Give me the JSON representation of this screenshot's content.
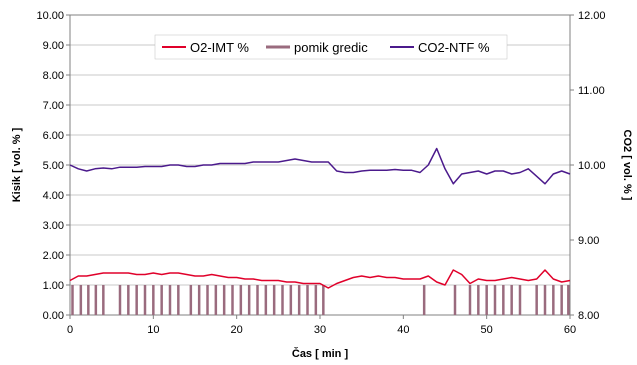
{
  "chart_data": {
    "type": "line",
    "xlabel": "Čas [ min ]",
    "ylabel_left": "Kisik [ vol. % ]",
    "ylabel_right": "CO2 [ vol. % ]",
    "x_ticks": [
      "0",
      "10",
      "20",
      "30",
      "40",
      "50",
      "60"
    ],
    "y_left_ticks": [
      "0.00",
      "1.00",
      "2.00",
      "3.00",
      "4.00",
      "5.00",
      "6.00",
      "7.00",
      "8.00",
      "9.00",
      "10.00"
    ],
    "y_right_ticks": [
      "8.00",
      "9.00",
      "10.00",
      "11.00",
      "12.00"
    ],
    "xlim": [
      0,
      60
    ],
    "ylim_left": [
      0,
      10
    ],
    "ylim_right": [
      8,
      12
    ],
    "grid": "horizontal",
    "legend_position": "top",
    "series": [
      {
        "name": "O2-IMT %",
        "axis": "left",
        "color": "#e0002a",
        "x": [
          0,
          1,
          2,
          3,
          4,
          5,
          6,
          7,
          8,
          9,
          10,
          11,
          12,
          13,
          14,
          15,
          16,
          17,
          18,
          19,
          20,
          21,
          22,
          23,
          24,
          25,
          26,
          27,
          28,
          29,
          30,
          31,
          32,
          33,
          34,
          35,
          36,
          37,
          38,
          39,
          40,
          41,
          42,
          43,
          44,
          45,
          46,
          47,
          48,
          49,
          50,
          51,
          52,
          53,
          54,
          55,
          56,
          57,
          58,
          59,
          60
        ],
        "y": [
          1.15,
          1.3,
          1.3,
          1.35,
          1.4,
          1.4,
          1.4,
          1.4,
          1.35,
          1.35,
          1.4,
          1.35,
          1.4,
          1.4,
          1.35,
          1.3,
          1.3,
          1.35,
          1.3,
          1.25,
          1.25,
          1.2,
          1.2,
          1.15,
          1.15,
          1.15,
          1.1,
          1.1,
          1.05,
          1.05,
          1.05,
          0.9,
          1.05,
          1.15,
          1.25,
          1.3,
          1.25,
          1.3,
          1.25,
          1.25,
          1.2,
          1.2,
          1.2,
          1.3,
          1.1,
          1.0,
          1.5,
          1.35,
          1.05,
          1.2,
          1.15,
          1.15,
          1.2,
          1.25,
          1.2,
          1.15,
          1.2,
          1.5,
          1.2,
          1.1,
          1.15
        ]
      },
      {
        "name": "pomik gredic",
        "axis": "left",
        "color": "#9a6b7e",
        "pulse_height": 1.0,
        "pulse_x": [
          0.3,
          1.3,
          2.2,
          3.1,
          4.0,
          6.0,
          7.0,
          8.0,
          9.0,
          10.0,
          11.0,
          12.0,
          13.0,
          14.5,
          15.5,
          16.5,
          17.5,
          18.5,
          19.5,
          20.5,
          21.5,
          22.5,
          23.5,
          24.5,
          25.5,
          26.5,
          27.5,
          28.5,
          29.5,
          30.4,
          42.5,
          46.2,
          48.0,
          49.0,
          50.0,
          51.0,
          52.0,
          53.0,
          54.0,
          56.0,
          57.0,
          58.0,
          59.0,
          59.8
        ]
      },
      {
        "name": "CO2-NTF %",
        "axis": "right",
        "color": "#4b1a8c",
        "x": [
          0,
          1,
          2,
          3,
          4,
          5,
          6,
          7,
          8,
          9,
          10,
          11,
          12,
          13,
          14,
          15,
          16,
          17,
          18,
          19,
          20,
          21,
          22,
          23,
          24,
          25,
          26,
          27,
          28,
          29,
          30,
          31,
          32,
          33,
          34,
          35,
          36,
          37,
          38,
          39,
          40,
          41,
          42,
          43,
          44,
          45,
          46,
          47,
          48,
          49,
          50,
          51,
          52,
          53,
          54,
          55,
          56,
          57,
          58,
          59,
          60
        ],
        "y": [
          10.0,
          9.95,
          9.92,
          9.95,
          9.96,
          9.95,
          9.97,
          9.97,
          9.97,
          9.98,
          9.98,
          9.98,
          10.0,
          10.0,
          9.98,
          9.98,
          10.0,
          10.0,
          10.02,
          10.02,
          10.02,
          10.02,
          10.04,
          10.04,
          10.04,
          10.04,
          10.06,
          10.08,
          10.06,
          10.04,
          10.04,
          10.04,
          9.92,
          9.9,
          9.9,
          9.92,
          9.93,
          9.93,
          9.93,
          9.94,
          9.93,
          9.93,
          9.9,
          10.0,
          10.22,
          9.95,
          9.75,
          9.88,
          9.9,
          9.92,
          9.88,
          9.92,
          9.92,
          9.88,
          9.9,
          9.95,
          9.85,
          9.75,
          9.88,
          9.92,
          9.88
        ]
      }
    ]
  }
}
